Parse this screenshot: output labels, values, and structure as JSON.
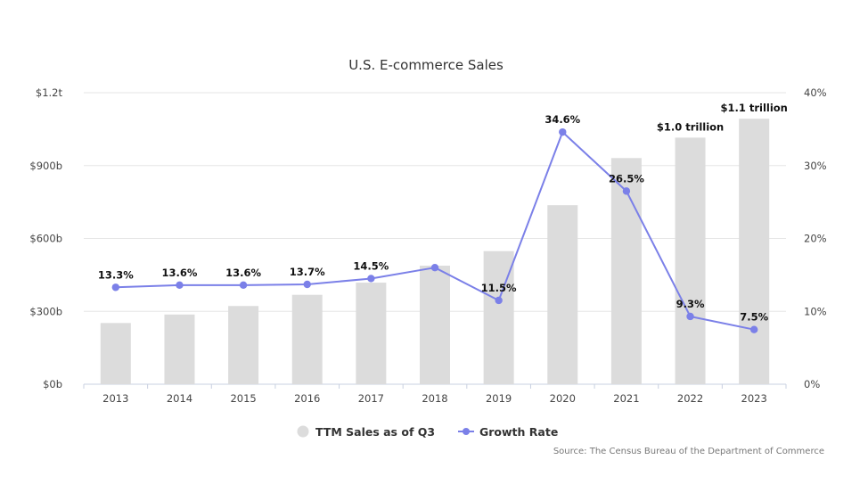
{
  "chart_data": {
    "type": "bar",
    "title": "U.S. E-commerce Sales",
    "categories": [
      "2013",
      "2014",
      "2015",
      "2016",
      "2017",
      "2018",
      "2019",
      "2020",
      "2021",
      "2022",
      "2023"
    ],
    "series": [
      {
        "name": "TTM Sales as of Q3",
        "type": "bar",
        "axis": "left",
        "color": "#dcdcdc",
        "values": [
          252,
          287,
          322,
          368,
          418,
          488,
          548,
          737,
          931,
          1015,
          1093
        ],
        "data_labels": [
          "",
          "",
          "",
          "",
          "",
          "",
          "",
          "",
          "",
          "$1.0 trillion",
          "$1.1 trillion"
        ]
      },
      {
        "name": "Growth Rate",
        "type": "line",
        "axis": "right",
        "color": "#7b80e8",
        "values": [
          13.3,
          13.6,
          13.6,
          13.7,
          14.5,
          16.0,
          11.5,
          34.6,
          26.5,
          9.3,
          7.5
        ],
        "data_labels": [
          "13.3%",
          "13.6%",
          "13.6%",
          "13.7%",
          "14.5%",
          "",
          "11.5%",
          "34.6%",
          "26.5%",
          "9.3%",
          "7.5%"
        ]
      }
    ],
    "y_left": {
      "ylim": [
        0,
        1200
      ],
      "ticks": [
        0,
        300,
        600,
        900,
        1200
      ],
      "tick_labels": [
        "$0b",
        "$300b",
        "$600b",
        "$900b",
        "$1.2t"
      ]
    },
    "y_right": {
      "ylim": [
        0,
        40
      ],
      "ticks": [
        0,
        10,
        20,
        30,
        40
      ],
      "tick_labels": [
        "0%",
        "10%",
        "20%",
        "30%",
        "40%"
      ]
    },
    "grid": true,
    "legend_position": "bottom-center",
    "source": "Source: The Census Bureau of the Department of Commerce"
  }
}
